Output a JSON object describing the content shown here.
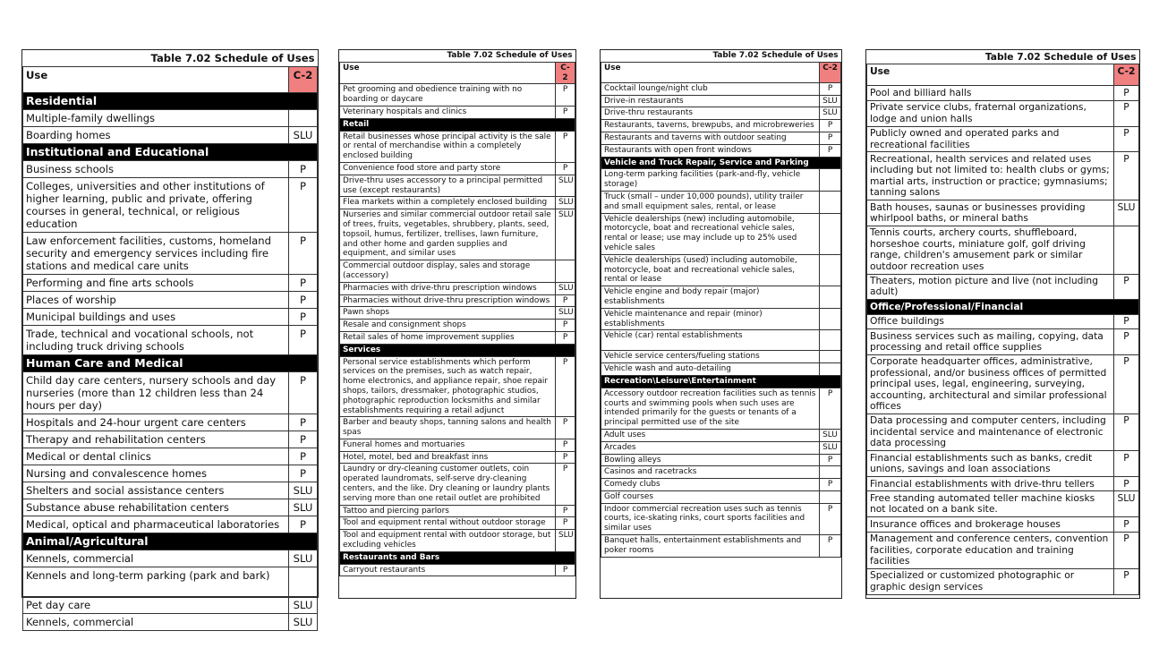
{
  "accent_color": "#f07f7f",
  "panels": [
    {
      "title": "Table 7.02 Schedule of Uses",
      "col_use": "Use",
      "col_code": "C-2",
      "rows": [
        {
          "section": "Residential"
        },
        {
          "use": "Multiple-family dwellings",
          "value": ""
        },
        {
          "use": "Boarding homes",
          "value": "SLU"
        },
        {
          "section": "Institutional and Educational"
        },
        {
          "use": "Business schools",
          "value": "P"
        },
        {
          "use": "Colleges, universities and other institutions of higher learning, public and private, offering courses in general, technical, or religious education",
          "value": "P"
        },
        {
          "use": "Law enforcement facilities, customs, homeland security and emergency services including fire stations and medical care units",
          "value": "P"
        },
        {
          "use": "Performing and fine arts schools",
          "value": "P"
        },
        {
          "use": "Places of worship",
          "value": "P"
        },
        {
          "use": "Municipal buildings and uses",
          "value": "P"
        },
        {
          "use": "Trade, technical and vocational schools, not including truck driving schools",
          "value": "P"
        },
        {
          "section": "Human Care and Medical"
        },
        {
          "use": "Child day care centers, nursery schools and day nurseries (more than 12 children less than 24 hours per day)",
          "value": "P"
        },
        {
          "use": "Hospitals and 24-hour urgent care centers",
          "value": "P"
        },
        {
          "use": "Therapy and rehabilitation centers",
          "value": "P"
        },
        {
          "use": "Medical or dental clinics",
          "value": "P"
        },
        {
          "use": "Nursing and convalescence homes",
          "value": "P"
        },
        {
          "use": "Shelters and social assistance centers",
          "value": "SLU"
        },
        {
          "use": "Substance abuse rehabilitation centers",
          "value": "SLU"
        },
        {
          "use": "Medical, optical and pharmaceutical laboratories",
          "value": "P"
        },
        {
          "section": "Animal/Agricultural"
        },
        {
          "use": "Kennels, commercial",
          "value": "SLU"
        },
        {
          "use": "Kennels and long-term parking (park and bark)",
          "value": "",
          "tall": true
        },
        {
          "use": "Pet day care",
          "value": "SLU"
        },
        {
          "use": "Kennels, commercial",
          "value": "SLU"
        }
      ]
    },
    {
      "title": "Table 7.02 Schedule of Uses",
      "col_use": "Use",
      "col_code": "C-2",
      "rows": [
        {
          "use": "Pet grooming and obedience training with no boarding or daycare",
          "value": "P"
        },
        {
          "use": "Veterinary hospitals and clinics",
          "value": "P"
        },
        {
          "section": "Retail"
        },
        {
          "use": "Retail businesses whose principal activity is the sale or rental of merchandise within a completely enclosed building",
          "value": "P"
        },
        {
          "use": "Convenience food store and party store",
          "value": "P"
        },
        {
          "use": "Drive-thru uses accessory to a principal permitted use (except restaurants)",
          "value": "SLU"
        },
        {
          "use": "Flea markets within a completely enclosed building",
          "value": "SLU"
        },
        {
          "use": "Nurseries and similar commercial outdoor retail sale of trees, fruits, vegetables, shrubbery, plants, seed, topsoil, humus, fertilizer, trellises, lawn furniture, and other home and garden supplies and equipment, and similar uses",
          "value": "SLU"
        },
        {
          "use": "Commercial outdoor display, sales and storage (accessory)",
          "value": ""
        },
        {
          "use": "Pharmacies with drive-thru prescription windows",
          "value": "SLU"
        },
        {
          "use": "Pharmacies without drive-thru prescription windows",
          "value": "P"
        },
        {
          "use": "Pawn shops",
          "value": "SLU"
        },
        {
          "use": "Resale and consignment shops",
          "value": "P"
        },
        {
          "use": "Retail sales of home improvement supplies",
          "value": "P"
        },
        {
          "section": "Services"
        },
        {
          "use": "Personal service establishments which perform services on the premises, such as watch repair, home electronics, and appliance repair, shoe repair shops, tailors, dressmaker, photographic studios, photographic reproduction locksmiths and similar establishments requiring a retail adjunct",
          "value": "P"
        },
        {
          "use": "Barber and beauty shops, tanning salons and health spas",
          "value": "P"
        },
        {
          "use": "Funeral homes and mortuaries",
          "value": "P"
        },
        {
          "use": "Hotel, motel, bed and breakfast inns",
          "value": "P"
        },
        {
          "use": "Laundry or dry-cleaning customer outlets, coin operated laundromats, self-serve dry-cleaning centers, and the like. Dry cleaning or laundry plants serving more than one retail outlet are prohibited",
          "value": "P"
        },
        {
          "use": "Tattoo and piercing parlors",
          "value": "P"
        },
        {
          "use": "Tool and equipment rental without outdoor storage",
          "value": "P"
        },
        {
          "use": "Tool and equipment rental with outdoor storage, but excluding vehicles",
          "value": "SLU"
        },
        {
          "section": "Restaurants and Bars"
        },
        {
          "use": "Carryout restaurants",
          "value": "P"
        }
      ]
    },
    {
      "title": "Table 7.02 Schedule of Uses",
      "col_use": "Use",
      "col_code": "C-2",
      "rows": [
        {
          "use": "Cocktail lounge/night club",
          "value": "P"
        },
        {
          "use": "Drive-in restaurants",
          "value": "SLU"
        },
        {
          "use": "Drive-thru restaurants",
          "value": "SLU"
        },
        {
          "use": "Restaurants, taverns, brewpubs, and microbreweries",
          "value": "P"
        },
        {
          "use": "Restaurants and taverns with outdoor seating",
          "value": "P"
        },
        {
          "use": "Restaurants with open front windows",
          "value": "P"
        },
        {
          "section": "Vehicle and Truck Repair, Service and Parking"
        },
        {
          "use": "Long-term parking facilities (park-and-fly, vehicle storage)",
          "value": ""
        },
        {
          "use": "Truck (small – under 10,000 pounds), utility trailer and small equipment sales, rental, or lease",
          "value": ""
        },
        {
          "use": "Vehicle dealerships (new) including automobile, motorcycle, boat and recreational vehicle sales, rental or lease; use may include up to 25% used vehicle sales",
          "value": ""
        },
        {
          "use": "Vehicle dealerships (used) including automobile, motorcycle, boat and recreational vehicle sales, rental or lease",
          "value": ""
        },
        {
          "use": "Vehicle engine and body repair (major) establishments",
          "value": ""
        },
        {
          "use": "Vehicle maintenance and repair (minor) establishments",
          "value": ""
        },
        {
          "use": "Vehicle (car) rental establishments",
          "value": "",
          "tall": true
        },
        {
          "use": "Vehicle service centers/fueling stations",
          "value": ""
        },
        {
          "use": "Vehicle wash and auto-detailing",
          "value": ""
        },
        {
          "section": "Recreation\\Leisure\\Entertainment"
        },
        {
          "use": "Accessory outdoor recreation facilities such as tennis courts and swimming pools when such uses are intended primarily for the guests or tenants of a principal permitted use of the site",
          "value": "P"
        },
        {
          "use": "Adult uses",
          "value": "SLU"
        },
        {
          "use": "Arcades",
          "value": "SLU"
        },
        {
          "use": "Bowling alleys",
          "value": "P"
        },
        {
          "use": "Casinos and racetracks",
          "value": ""
        },
        {
          "use": "Comedy clubs",
          "value": "P"
        },
        {
          "use": "Golf courses",
          "value": ""
        },
        {
          "use": "Indoor commercial recreation uses such as tennis courts, ice-skating rinks, court sports facilities and similar uses",
          "value": "P"
        },
        {
          "use": "Banquet halls, entertainment establishments and poker rooms",
          "value": "P"
        }
      ]
    },
    {
      "title": "Table 7.02 Schedule of Uses",
      "col_use": "Use",
      "col_code": "C-2",
      "rows": [
        {
          "use": "Pool and billiard halls",
          "value": "P"
        },
        {
          "use": "Private service clubs, fraternal organizations, lodge and union halls",
          "value": "P"
        },
        {
          "use": "Publicly owned and operated parks and recreational facilities",
          "value": "P"
        },
        {
          "use": "Recreational, health services and related uses including but not limited to: health clubs or gyms; martial arts, instruction or practice; gymnasiums; tanning salons",
          "value": "P"
        },
        {
          "use": "Bath houses, saunas or businesses providing whirlpool baths, or mineral baths",
          "value": "SLU"
        },
        {
          "use": "Tennis courts, archery courts, shuffleboard, horseshoe courts, miniature golf, golf driving range, children's amusement park or similar outdoor recreation uses",
          "value": ""
        },
        {
          "use": "Theaters, motion picture and live (not including adult)",
          "value": "P"
        },
        {
          "section": "Office/Professional/Financial"
        },
        {
          "use": "Office buildings",
          "value": "P"
        },
        {
          "use": "Business services such as mailing, copying, data processing and retail office supplies",
          "value": "P"
        },
        {
          "use": "Corporate headquarter offices, administrative, professional, and/or business offices of permitted principal uses, legal, engineering, surveying, accounting, architectural and similar professional offices",
          "value": "P"
        },
        {
          "use": "Data processing and computer centers, including incidental service and maintenance of electronic data processing",
          "value": "P"
        },
        {
          "use": "Financial establishments such as banks, credit unions, savings and loan associations",
          "value": "P"
        },
        {
          "use": "Financial establishments with drive-thru tellers",
          "value": "P"
        },
        {
          "use": "Free standing automated teller machine kiosks not located on a bank site.",
          "value": "SLU"
        },
        {
          "use": "Insurance offices and brokerage houses",
          "value": "P"
        },
        {
          "use": "Management and conference centers, convention facilities, corporate education and training facilities",
          "value": "P"
        },
        {
          "use": "Specialized or customized photographic or graphic design services",
          "value": "P"
        }
      ]
    }
  ]
}
